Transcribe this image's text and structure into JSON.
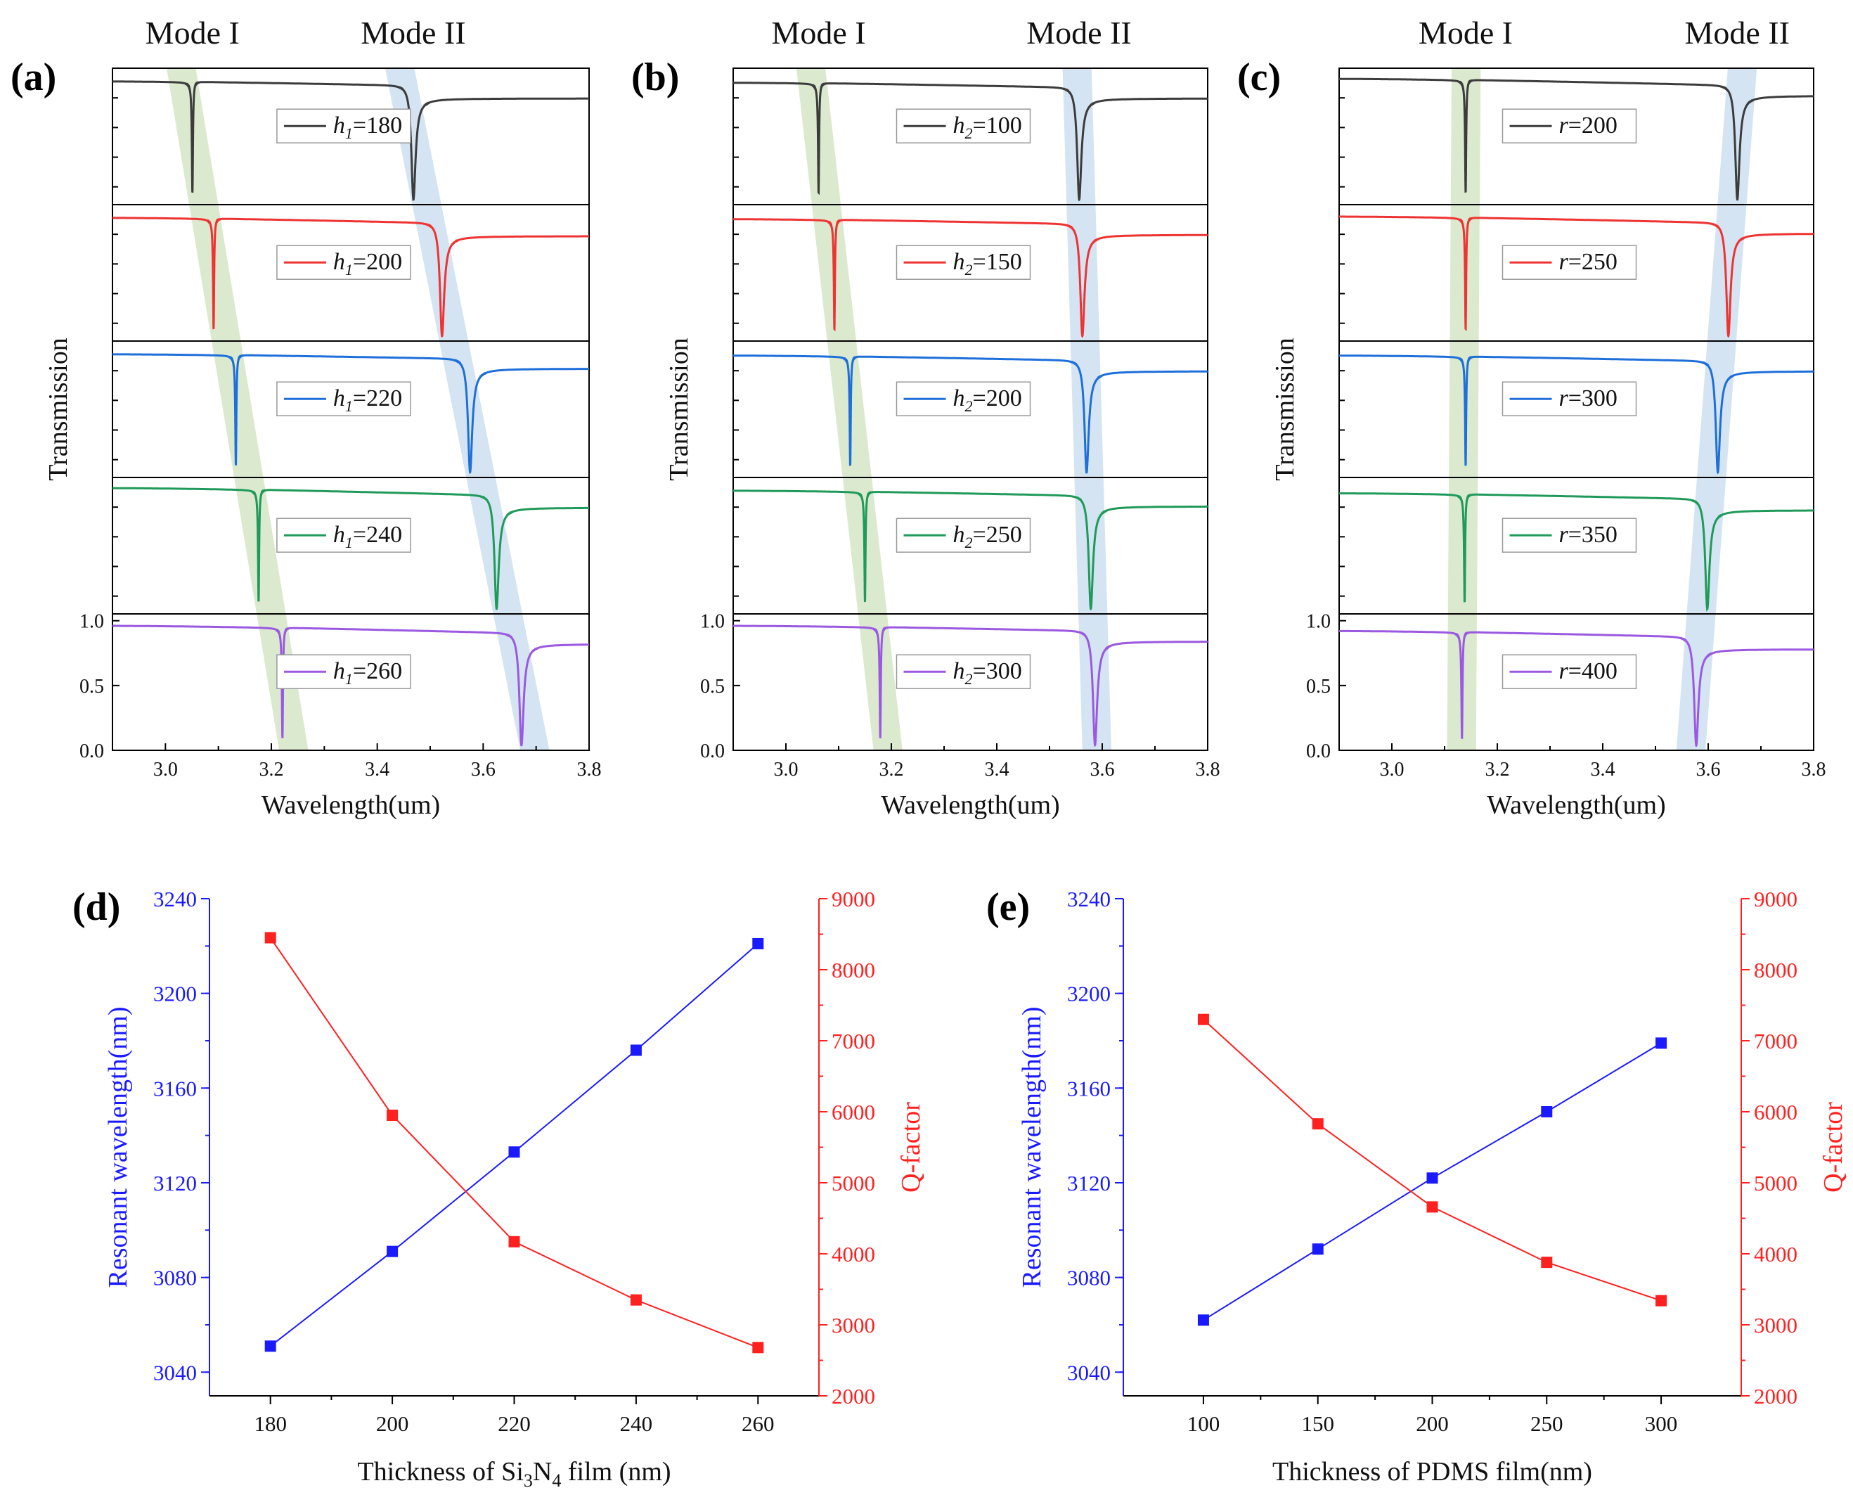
{
  "chart_data": [
    {
      "type": "line",
      "panel_label": "(a)",
      "mode_labels": [
        "Mode I",
        "Mode II"
      ],
      "xlabel": "Wavelength(um)",
      "ylabel": "Transmission",
      "xlim": [
        2.9,
        3.8
      ],
      "xticks": [
        "3.0",
        "3.2",
        "3.4",
        "3.6",
        "3.8"
      ],
      "ylim": [
        0.0,
        1.0
      ],
      "yticks": [
        "0.0",
        "0.5",
        "1.0"
      ],
      "param": {
        "symbol": "h",
        "sub": "1"
      },
      "series": [
        {
          "name": "180",
          "color": "#3c3c3c",
          "t_start": 0.95,
          "t_end": 0.82,
          "mode1": 3.051,
          "mode2": 3.468
        },
        {
          "name": "200",
          "color": "#ee3333",
          "t_start": 0.95,
          "t_end": 0.81,
          "mode1": 3.091,
          "mode2": 3.522
        },
        {
          "name": "220",
          "color": "#1e6fd9",
          "t_start": 0.95,
          "t_end": 0.84,
          "mode1": 3.133,
          "mode2": 3.575
        },
        {
          "name": "240",
          "color": "#1f9a5a",
          "t_start": 0.97,
          "t_end": 0.82,
          "mode1": 3.176,
          "mode2": 3.625
        },
        {
          "name": "260",
          "color": "#9a59e0",
          "t_start": 0.96,
          "t_end": 0.82,
          "mode1": 3.221,
          "mode2": 3.672
        }
      ]
    },
    {
      "type": "line",
      "panel_label": "(b)",
      "mode_labels": [
        "Mode I",
        "Mode II"
      ],
      "xlabel": "Wavelength(um)",
      "ylabel": "Transmission",
      "xlim": [
        2.9,
        3.8
      ],
      "xticks": [
        "3.0",
        "3.2",
        "3.4",
        "3.6",
        "3.8"
      ],
      "ylim": [
        0.0,
        1.0
      ],
      "yticks": [
        "0.0",
        "0.5",
        "1.0"
      ],
      "param": {
        "symbol": "h",
        "sub": "2"
      },
      "series": [
        {
          "name": "100",
          "color": "#3c3c3c",
          "t_start": 0.94,
          "t_end": 0.82,
          "mode1": 3.062,
          "mode2": 3.556
        },
        {
          "name": "150",
          "color": "#ee3333",
          "t_start": 0.94,
          "t_end": 0.82,
          "mode1": 3.092,
          "mode2": 3.562
        },
        {
          "name": "200",
          "color": "#1e6fd9",
          "t_start": 0.94,
          "t_end": 0.82,
          "mode1": 3.122,
          "mode2": 3.57
        },
        {
          "name": "250",
          "color": "#1f9a5a",
          "t_start": 0.95,
          "t_end": 0.83,
          "mode1": 3.15,
          "mode2": 3.578
        },
        {
          "name": "300",
          "color": "#9a59e0",
          "t_start": 0.96,
          "t_end": 0.84,
          "mode1": 3.179,
          "mode2": 3.586
        }
      ]
    },
    {
      "type": "line",
      "panel_label": "(c)",
      "mode_labels": [
        "Mode I",
        "Mode II"
      ],
      "xlabel": "Wavelength(um)",
      "ylabel": "Transmission",
      "xlim": [
        2.9,
        3.8
      ],
      "xticks": [
        "3.0",
        "3.2",
        "3.4",
        "3.6",
        "3.8"
      ],
      "ylim": [
        0.0,
        1.0
      ],
      "yticks": [
        "0.0",
        "0.5",
        "1.0"
      ],
      "param": {
        "symbol": "r",
        "sub": ""
      },
      "series": [
        {
          "name": "200",
          "color": "#3c3c3c",
          "t_start": 0.97,
          "t_end": 0.84,
          "mode1": 3.14,
          "mode2": 3.655
        },
        {
          "name": "250",
          "color": "#ee3333",
          "t_start": 0.96,
          "t_end": 0.83,
          "mode1": 3.14,
          "mode2": 3.638
        },
        {
          "name": "300",
          "color": "#1e6fd9",
          "t_start": 0.94,
          "t_end": 0.82,
          "mode1": 3.14,
          "mode2": 3.618
        },
        {
          "name": "350",
          "color": "#1f9a5a",
          "t_start": 0.93,
          "t_end": 0.8,
          "mode1": 3.138,
          "mode2": 3.598
        },
        {
          "name": "400",
          "color": "#9a59e0",
          "t_start": 0.92,
          "t_end": 0.78,
          "mode1": 3.133,
          "mode2": 3.577
        }
      ]
    },
    {
      "type": "line",
      "panel_label": "(d)",
      "title": "",
      "xlabel_parts": [
        "Thickness of Si",
        "3",
        "N",
        "4",
        " film (nm)"
      ],
      "ylabel": "Resonant wavelength(nm)",
      "y2label": "Q-factor",
      "x": [
        180,
        200,
        220,
        240,
        260
      ],
      "xlim": [
        170,
        270
      ],
      "xticks": [
        "180",
        "200",
        "220",
        "240",
        "260"
      ],
      "ylim": [
        3030,
        3240
      ],
      "yticks": [
        "3040",
        "3080",
        "3120",
        "3160",
        "3200",
        "3240"
      ],
      "y2lim": [
        2000,
        9000
      ],
      "y2ticks": [
        "2000",
        "3000",
        "4000",
        "5000",
        "6000",
        "7000",
        "8000",
        "9000"
      ],
      "series": [
        {
          "name": "Resonant wavelength",
          "axis": "left",
          "color": "#1a1aff",
          "values": [
            3051,
            3091,
            3133,
            3176,
            3221
          ]
        },
        {
          "name": "Q-factor",
          "axis": "right",
          "color": "#ff2020",
          "values": [
            8450,
            5950,
            4170,
            3350,
            2680
          ]
        }
      ]
    },
    {
      "type": "line",
      "panel_label": "(e)",
      "title": "",
      "xlabel_parts": [
        "Thickness of PDMS film(nm)"
      ],
      "ylabel": "Resonant wavelength(nm)",
      "y2label": "Q-factor",
      "x": [
        100,
        150,
        200,
        250,
        300
      ],
      "xlim": [
        65,
        335
      ],
      "xticks": [
        "100",
        "150",
        "200",
        "250",
        "300"
      ],
      "ylim": [
        3030,
        3240
      ],
      "yticks": [
        "3040",
        "3080",
        "3120",
        "3160",
        "3200",
        "3240"
      ],
      "y2lim": [
        2000,
        9000
      ],
      "y2ticks": [
        "2000",
        "3000",
        "4000",
        "5000",
        "6000",
        "7000",
        "8000",
        "9000"
      ],
      "series": [
        {
          "name": "Resonant wavelength",
          "axis": "left",
          "color": "#1a1aff",
          "values": [
            3062,
            3092,
            3122,
            3150,
            3179
          ]
        },
        {
          "name": "Q-factor",
          "axis": "right",
          "color": "#ff2020",
          "values": [
            7300,
            5830,
            4660,
            3880,
            3340
          ]
        }
      ]
    }
  ],
  "colors": {
    "mode1_band": "#cfe3bf",
    "mode2_band": "#c7dbef",
    "axis": "#000000",
    "left_axis": "#1a1aff",
    "right_axis": "#ff2020"
  }
}
